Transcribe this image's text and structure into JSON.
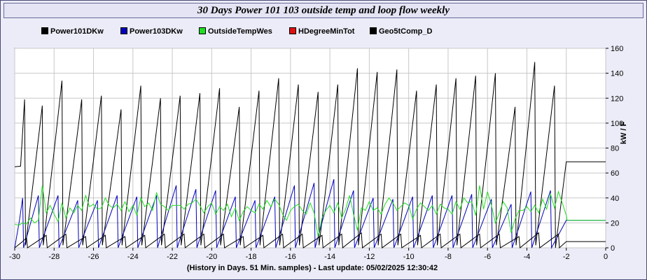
{
  "title": "30 Days Power 101 103 outside temp and loop flow weekly",
  "footer": "(History in Days. 51 Min. samples) - Last update: 05/02/2025 12:30:42",
  "chart_data": {
    "type": "line",
    "title": "30 Days Power 101 103 outside temp and loop flow weekly",
    "xlabel": "(History in Days. 51 Min. samples) - Last update: 05/02/2025 12:30:42",
    "ylabel": "kW / F",
    "xlim": [
      -30,
      0
    ],
    "ylim": [
      0,
      160
    ],
    "xticks": [
      -30,
      -28,
      -26,
      -24,
      -22,
      -20,
      -18,
      -16,
      -14,
      -12,
      -10,
      -8,
      -6,
      -4,
      -2,
      0
    ],
    "yticks": [
      0,
      20,
      40,
      60,
      80,
      100,
      120,
      140,
      160
    ],
    "grid": true,
    "legend_position": "top",
    "series": [
      {
        "name": "Power101DKw",
        "color": "#000000",
        "cycle_peaks": [
          [
            -29.5,
            119
          ],
          [
            -28.6,
            114
          ],
          [
            -27.6,
            134
          ],
          [
            -26.6,
            119
          ],
          [
            -25.6,
            122
          ],
          [
            -24.6,
            111
          ],
          [
            -23.6,
            130
          ],
          [
            -22.6,
            120
          ],
          [
            -21.6,
            122
          ],
          [
            -20.6,
            124
          ],
          [
            -19.6,
            128
          ],
          [
            -18.6,
            113
          ],
          [
            -17.6,
            126
          ],
          [
            -16.6,
            136
          ],
          [
            -15.6,
            131
          ],
          [
            -14.6,
            125
          ],
          [
            -13.6,
            131
          ],
          [
            -12.6,
            144
          ],
          [
            -11.6,
            141
          ],
          [
            -10.6,
            143
          ],
          [
            -9.6,
            126
          ],
          [
            -8.6,
            131
          ],
          [
            -7.6,
            136
          ],
          [
            -6.6,
            138
          ],
          [
            -5.6,
            140
          ],
          [
            -4.6,
            113
          ],
          [
            -3.6,
            149
          ],
          [
            -2.6,
            130
          ]
        ],
        "final_level": 69
      },
      {
        "name": "Power103DKw",
        "color": "#0000bb",
        "cycle_peaks": [
          [
            -29.6,
            40
          ],
          [
            -28.8,
            42
          ],
          [
            -27.8,
            42
          ],
          [
            -26.8,
            38
          ],
          [
            -25.8,
            38
          ],
          [
            -24.8,
            42
          ],
          [
            -23.8,
            41
          ],
          [
            -22.8,
            42
          ],
          [
            -21.8,
            50
          ],
          [
            -20.8,
            47
          ],
          [
            -19.8,
            46
          ],
          [
            -18.8,
            41
          ],
          [
            -17.8,
            38
          ],
          [
            -16.8,
            41
          ],
          [
            -15.8,
            50
          ],
          [
            -14.8,
            52
          ],
          [
            -13.8,
            55
          ],
          [
            -12.8,
            46
          ],
          [
            -11.8,
            40
          ],
          [
            -10.8,
            39
          ],
          [
            -9.8,
            41
          ],
          [
            -8.8,
            42
          ],
          [
            -7.8,
            42
          ],
          [
            -6.8,
            43
          ],
          [
            -5.8,
            39
          ],
          [
            -4.8,
            35
          ],
          [
            -3.8,
            45
          ],
          [
            -2.8,
            46
          ]
        ],
        "final_level": 22
      },
      {
        "name": "OutsideTempWes",
        "color": "#22dd22",
        "x": [
          -30,
          -29.8,
          -29.6,
          -29.4,
          -29.2,
          -29,
          -28.8,
          -28.6,
          -28.4,
          -28.2,
          -28,
          -27.8,
          -27.6,
          -27.4,
          -27.2,
          -27,
          -26.8,
          -26.6,
          -26.4,
          -26.2,
          -26,
          -25.8,
          -25.6,
          -25.4,
          -25.2,
          -25,
          -24.8,
          -24.6,
          -24.4,
          -24.2,
          -24,
          -23.8,
          -23.6,
          -23.4,
          -23.2,
          -23,
          -22.8,
          -22.6,
          -22.4,
          -22.2,
          -22,
          -21.8,
          -21.6,
          -21.4,
          -21.2,
          -21,
          -20.8,
          -20.6,
          -20.4,
          -20.2,
          -20,
          -19.8,
          -19.6,
          -19.4,
          -19.2,
          -19,
          -18.8,
          -18.6,
          -18.4,
          -18.2,
          -18,
          -17.8,
          -17.6,
          -17.4,
          -17.2,
          -17,
          -16.8,
          -16.6,
          -16.4,
          -16.2,
          -16,
          -15.8,
          -15.6,
          -15.4,
          -15.2,
          -15,
          -14.8,
          -14.6,
          -14.4,
          -14.2,
          -14,
          -13.8,
          -13.6,
          -13.4,
          -13.2,
          -13,
          -12.8,
          -12.6,
          -12.4,
          -12.2,
          -12,
          -11.8,
          -11.6,
          -11.4,
          -11.2,
          -11,
          -10.8,
          -10.6,
          -10.4,
          -10.2,
          -10,
          -9.8,
          -9.6,
          -9.4,
          -9.2,
          -9,
          -8.8,
          -8.6,
          -8.4,
          -8.2,
          -8,
          -7.8,
          -7.6,
          -7.4,
          -7.2,
          -7,
          -6.8,
          -6.6,
          -6.4,
          -6.2,
          -6,
          -5.8,
          -5.6,
          -5.4,
          -5.2,
          -5,
          -4.8,
          -4.6,
          -4.4,
          -4.2,
          -4,
          -3.8,
          -3.6,
          -3.4,
          -3.2,
          -3,
          -2.8,
          -2.6,
          -2.4,
          -2.2,
          -2.0,
          -1.95,
          0
        ],
        "y": [
          19,
          18,
          20,
          19,
          24,
          20,
          22,
          50,
          28,
          34,
          27,
          21,
          36,
          24,
          32,
          28,
          34,
          30,
          42,
          33,
          35,
          31,
          32,
          40,
          34,
          32,
          35,
          30,
          37,
          29,
          34,
          26,
          40,
          33,
          36,
          30,
          44,
          35,
          33,
          30,
          34,
          34,
          34,
          31,
          35,
          36,
          39,
          34,
          28,
          33,
          36,
          27,
          33,
          30,
          35,
          25,
          32,
          22,
          29,
          33,
          30,
          28,
          35,
          31,
          38,
          33,
          39,
          35,
          27,
          22,
          30,
          33,
          35,
          30,
          27,
          36,
          28,
          9,
          24,
          30,
          34,
          28,
          36,
          24,
          31,
          42,
          27,
          14,
          32,
          30,
          37,
          30,
          32,
          27,
          35,
          40,
          36,
          30,
          33,
          36,
          34,
          23,
          31,
          36,
          33,
          30,
          34,
          27,
          35,
          32,
          31,
          27,
          37,
          31,
          40,
          36,
          37,
          26,
          50,
          31,
          45,
          34,
          20,
          28,
          37,
          32,
          12,
          23,
          30,
          30,
          33,
          29,
          34,
          28,
          39,
          31,
          43,
          32,
          45,
          36,
          26,
          22,
          22
        ],
        "final_level": 22
      },
      {
        "name": "HDegreeMinTot",
        "color": "#dd1111",
        "values": []
      },
      {
        "name": "Geo5tComp_D",
        "color": "#000000",
        "cycle_peaks": [
          [
            -29.4,
            8
          ],
          [
            -28.4,
            10
          ],
          [
            -27.4,
            11
          ],
          [
            -26.4,
            9
          ],
          [
            -25.4,
            10
          ],
          [
            -24.4,
            9
          ],
          [
            -23.4,
            10
          ],
          [
            -22.4,
            11
          ],
          [
            -21.4,
            11
          ],
          [
            -20.4,
            11
          ],
          [
            -19.4,
            11
          ],
          [
            -18.4,
            9
          ],
          [
            -17.4,
            10
          ],
          [
            -16.4,
            11
          ],
          [
            -15.4,
            11
          ],
          [
            -14.4,
            10
          ],
          [
            -13.4,
            11
          ],
          [
            -12.4,
            12
          ],
          [
            -11.4,
            11
          ],
          [
            -10.4,
            11
          ],
          [
            -9.4,
            10
          ],
          [
            -8.4,
            11
          ],
          [
            -7.4,
            11
          ],
          [
            -6.4,
            11
          ],
          [
            -5.4,
            11
          ],
          [
            -4.4,
            9
          ],
          [
            -3.4,
            12
          ],
          [
            -2.4,
            11
          ]
        ],
        "final_level": 5
      }
    ]
  }
}
